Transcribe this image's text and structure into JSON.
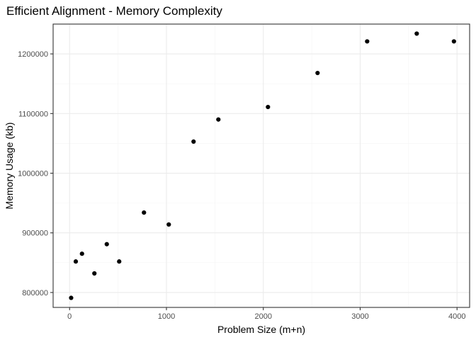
{
  "chart_data": {
    "type": "scatter",
    "title": "Efficient Alignment - Memory Complexity",
    "xlabel": "Problem Size (m+n)",
    "ylabel": "Memory Usage (kb)",
    "xlim": [
      -170,
      4130
    ],
    "ylim": [
      775000,
      1250000
    ],
    "x_ticks": [
      0,
      1000,
      2000,
      3000,
      4000
    ],
    "y_ticks": [
      800000,
      900000,
      1000000,
      1100000,
      1200000
    ],
    "x_tick_labels": [
      "0",
      "1000",
      "2000",
      "3000",
      "4000"
    ],
    "y_tick_labels": [
      "800000",
      "900000",
      "1000000",
      "1100000",
      "1200000"
    ],
    "grid": true,
    "points": [
      {
        "x": 16,
        "y": 791000
      },
      {
        "x": 64,
        "y": 852000
      },
      {
        "x": 128,
        "y": 865000
      },
      {
        "x": 256,
        "y": 832000
      },
      {
        "x": 384,
        "y": 881000
      },
      {
        "x": 512,
        "y": 852000
      },
      {
        "x": 768,
        "y": 934000
      },
      {
        "x": 1024,
        "y": 914000
      },
      {
        "x": 1280,
        "y": 1053000
      },
      {
        "x": 1536,
        "y": 1090000
      },
      {
        "x": 2048,
        "y": 1111000
      },
      {
        "x": 2560,
        "y": 1168000
      },
      {
        "x": 3072,
        "y": 1221000
      },
      {
        "x": 3584,
        "y": 1234000
      },
      {
        "x": 3968,
        "y": 1221000
      }
    ],
    "point_color": "#000000"
  }
}
